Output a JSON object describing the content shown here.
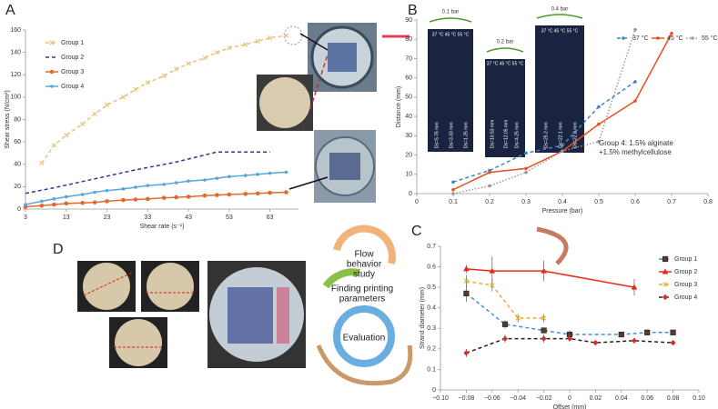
{
  "panel_labels": [
    "A",
    "B",
    "C",
    "D"
  ],
  "chart_data": [
    {
      "type": "line",
      "x_label": "Shear rate (s⁻¹)",
      "y_label": "Shear stress (N/cm²)",
      "xlim": [
        3,
        70
      ],
      "xticks": [
        3,
        13,
        23,
        33,
        43,
        53,
        63
      ],
      "ylim": [
        0,
        160
      ],
      "yticks": [
        0,
        20,
        40,
        60,
        80,
        100,
        120,
        140,
        160
      ],
      "legend": "upper left",
      "series": [
        {
          "name": "Group 1",
          "color": "#e6c27a",
          "line_style": "dashed",
          "marker": "cross",
          "x": [
            7,
            10,
            13,
            17,
            20,
            23,
            27,
            30,
            33,
            37,
            40,
            43,
            47,
            50,
            53,
            57,
            60,
            63,
            67
          ],
          "values": [
            41,
            57,
            66,
            76,
            85,
            93,
            100,
            107,
            113,
            119,
            125,
            130,
            135,
            140,
            144,
            147,
            150,
            153,
            155
          ]
        },
        {
          "name": "Group 2",
          "color": "#2b3a8c",
          "line_style": "dashed",
          "marker": "none",
          "x": [
            3,
            10,
            20,
            30,
            40,
            50,
            56,
            63
          ],
          "values": [
            14,
            19,
            27,
            35,
            42,
            51,
            51,
            51
          ]
        },
        {
          "name": "Group 3",
          "color": "#e06a2c",
          "line_style": "solid",
          "marker": "circle",
          "x": [
            3,
            7,
            10,
            13,
            17,
            20,
            23,
            27,
            30,
            33,
            37,
            40,
            43,
            47,
            50,
            53,
            57,
            60,
            63,
            67
          ],
          "values": [
            2,
            3,
            4,
            5,
            5.5,
            6,
            7,
            8,
            8.5,
            9,
            10,
            10.5,
            11,
            12,
            12.5,
            13,
            13.5,
            14,
            14.5,
            15
          ]
        },
        {
          "name": "Group 4",
          "color": "#5aa5d8",
          "line_style": "solid",
          "marker": "dot",
          "x": [
            3,
            7,
            10,
            13,
            17,
            20,
            23,
            27,
            30,
            33,
            37,
            40,
            43,
            47,
            50,
            53,
            57,
            60,
            63,
            67
          ],
          "values": [
            4,
            7,
            9,
            11,
            13,
            15,
            16.5,
            18,
            19.5,
            21,
            22,
            23.5,
            25,
            26,
            27.5,
            29,
            30,
            31,
            32,
            33
          ]
        }
      ]
    },
    {
      "type": "line",
      "x_label": "Pressure (bar)",
      "y_label": "Distance (mm)",
      "xlim": [
        0,
        0.8
      ],
      "xticks": [
        0,
        0.1,
        0.2,
        0.3,
        0.4,
        0.5,
        0.6,
        0.7,
        0.8
      ],
      "ylim": [
        0,
        90
      ],
      "yticks": [
        0,
        10,
        20,
        30,
        40,
        50,
        60,
        70,
        80,
        90
      ],
      "legend": "upper right",
      "annotation": [
        "Group 4: 1.5% alginate",
        "+1.5% methylcellulose"
      ],
      "x": [
        0.1,
        0.2,
        0.3,
        0.4,
        0.5,
        0.6,
        0.7
      ],
      "series": [
        {
          "name": "37 °C",
          "color": "#3a86c8",
          "line_style": "dashed",
          "marker": "dot",
          "values": [
            6,
            12,
            21,
            25,
            45,
            58,
            null
          ]
        },
        {
          "name": "45 °C",
          "color": "#e8501e",
          "line_style": "solid",
          "marker": "dot",
          "values": [
            2,
            11,
            13,
            22,
            36,
            48,
            83
          ]
        },
        {
          "name": "55 °C",
          "color": "#9a9a9a",
          "line_style": "dotted",
          "marker": "dot",
          "values": [
            0,
            4,
            11,
            22,
            27,
            85,
            null
          ]
        }
      ]
    },
    {
      "type": "line",
      "x_label": "Offset (mm)",
      "y_label": "Strand diameter (mm)",
      "xlim": [
        -0.1,
        0.1
      ],
      "xticks": [
        {
          "value": -0.1,
          "label": "−0.10"
        },
        {
          "value": -0.08,
          "label": "−0.08"
        },
        {
          "value": -0.06,
          "label": "−0.06"
        },
        {
          "value": -0.04,
          "label": "−0.04"
        },
        {
          "value": -0.02,
          "label": "−0.02"
        },
        0,
        0.02,
        0.04,
        0.06,
        0.08,
        {
          "value": 0.1,
          "label": "0.10"
        }
      ],
      "ylim": [
        0,
        0.7
      ],
      "yticks": [
        0,
        0.1,
        0.2,
        0.3,
        0.4,
        0.5,
        0.6,
        0.7
      ],
      "legend": "right",
      "series": [
        {
          "name": "Group 1",
          "color": "#4a8fd0",
          "marker_color": "#5a3a2a",
          "line_style": "dashed",
          "marker": "square",
          "x": [
            -0.08,
            -0.05,
            -0.02,
            0,
            0.04,
            0.06,
            0.08
          ],
          "values": [
            0.47,
            0.32,
            0.29,
            0.27,
            0.27,
            0.28,
            0.28
          ],
          "errors": [
            0.04,
            0.02,
            0.01,
            0.02,
            0.01,
            0.01,
            0.01
          ]
        },
        {
          "name": "Group 2",
          "color": "#e52a1a",
          "marker_color": "#e52a1a",
          "line_style": "solid",
          "marker": "triangle",
          "x": [
            -0.08,
            -0.06,
            -0.02,
            0.05
          ],
          "values": [
            0.59,
            0.58,
            0.58,
            0.5
          ],
          "errors": [
            0.02,
            0.07,
            0.05,
            0.04
          ]
        },
        {
          "name": "Group 3",
          "color": "#e0b030",
          "marker_color": "#e0b030",
          "line_style": "dashed",
          "marker": "cross",
          "x": [
            -0.08,
            -0.06,
            -0.04,
            -0.02
          ],
          "values": [
            0.53,
            0.51,
            0.35,
            0.35
          ],
          "errors": [
            0.03,
            0.03,
            0.02,
            0.02
          ]
        },
        {
          "name": "Group 4",
          "color": "#222222",
          "marker_color": "#d03030",
          "line_style": "dashed",
          "marker": "diamond",
          "x": [
            -0.08,
            -0.05,
            -0.02,
            0,
            0.02,
            0.05,
            0.08
          ],
          "values": [
            0.18,
            0.25,
            0.25,
            0.25,
            0.23,
            0.24,
            0.23
          ],
          "errors": [
            0.02,
            0.02,
            0.02,
            0.01,
            0.01,
            0.01,
            0.01
          ]
        }
      ]
    }
  ],
  "panel_b_photos": {
    "pressures": [
      "0.1 bar",
      "0.2 bar",
      "0.4 bar"
    ],
    "temperatures": [
      "37 °C 45 °C 55 °C",
      "37 °C 45 °C 55 °C",
      "37 °C 45 °C 55 °C"
    ],
    "diameters": [
      "Ds=5.76 mm",
      "Ds=3.33 mm",
      "Ds=1.25 mm",
      "Ds=10.53 mm",
      "Ds=12.05 mm",
      "Ds=4.25 mm",
      "Ds=25.2 mm",
      "Ds=22.1 mm",
      "Ds=22.8 mm"
    ]
  },
  "panel_d": {
    "cycle": [
      [
        "Flow",
        "behavior",
        "study"
      ],
      [
        "Finding printing",
        "parameters"
      ],
      [
        "Evaluation"
      ]
    ]
  }
}
